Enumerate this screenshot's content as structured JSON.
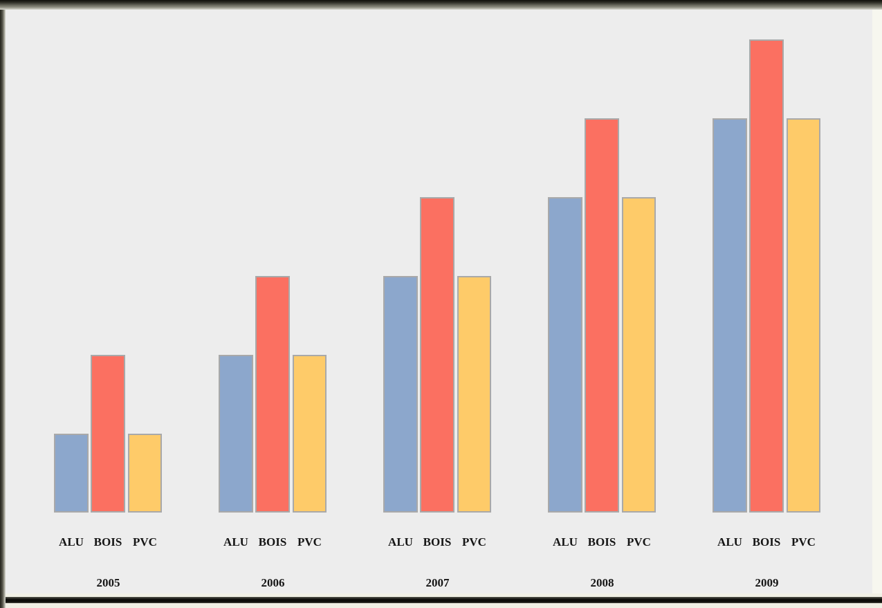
{
  "chart_data": {
    "type": "bar",
    "title": "",
    "categories": [
      "2005",
      "2006",
      "2007",
      "2008",
      "2009"
    ],
    "series": [
      {
        "name": "ALU",
        "color": "#8CA7CC",
        "values": [
          10,
          20,
          30,
          40,
          50
        ]
      },
      {
        "name": "BOIS",
        "color": "#FB7061",
        "values": [
          20,
          30,
          40,
          50,
          60
        ]
      },
      {
        "name": "PVC",
        "color": "#FECB69",
        "values": [
          10,
          20,
          30,
          40,
          50
        ]
      }
    ],
    "ylim": [
      0,
      60
    ],
    "grid": false,
    "legend_position": "none",
    "axes_visible": false,
    "bar_label_style": "series name repeated under each bar of every group",
    "category_label_style": "year centered under each group"
  },
  "colors": {
    "plot_background": "#EDEDED",
    "bar_border": "#A9A9A9",
    "label_text": "#151515",
    "frame_dark": "#10100a",
    "frame_olive": "#6a6a5e",
    "outer_cream": "#f1f0e5"
  }
}
